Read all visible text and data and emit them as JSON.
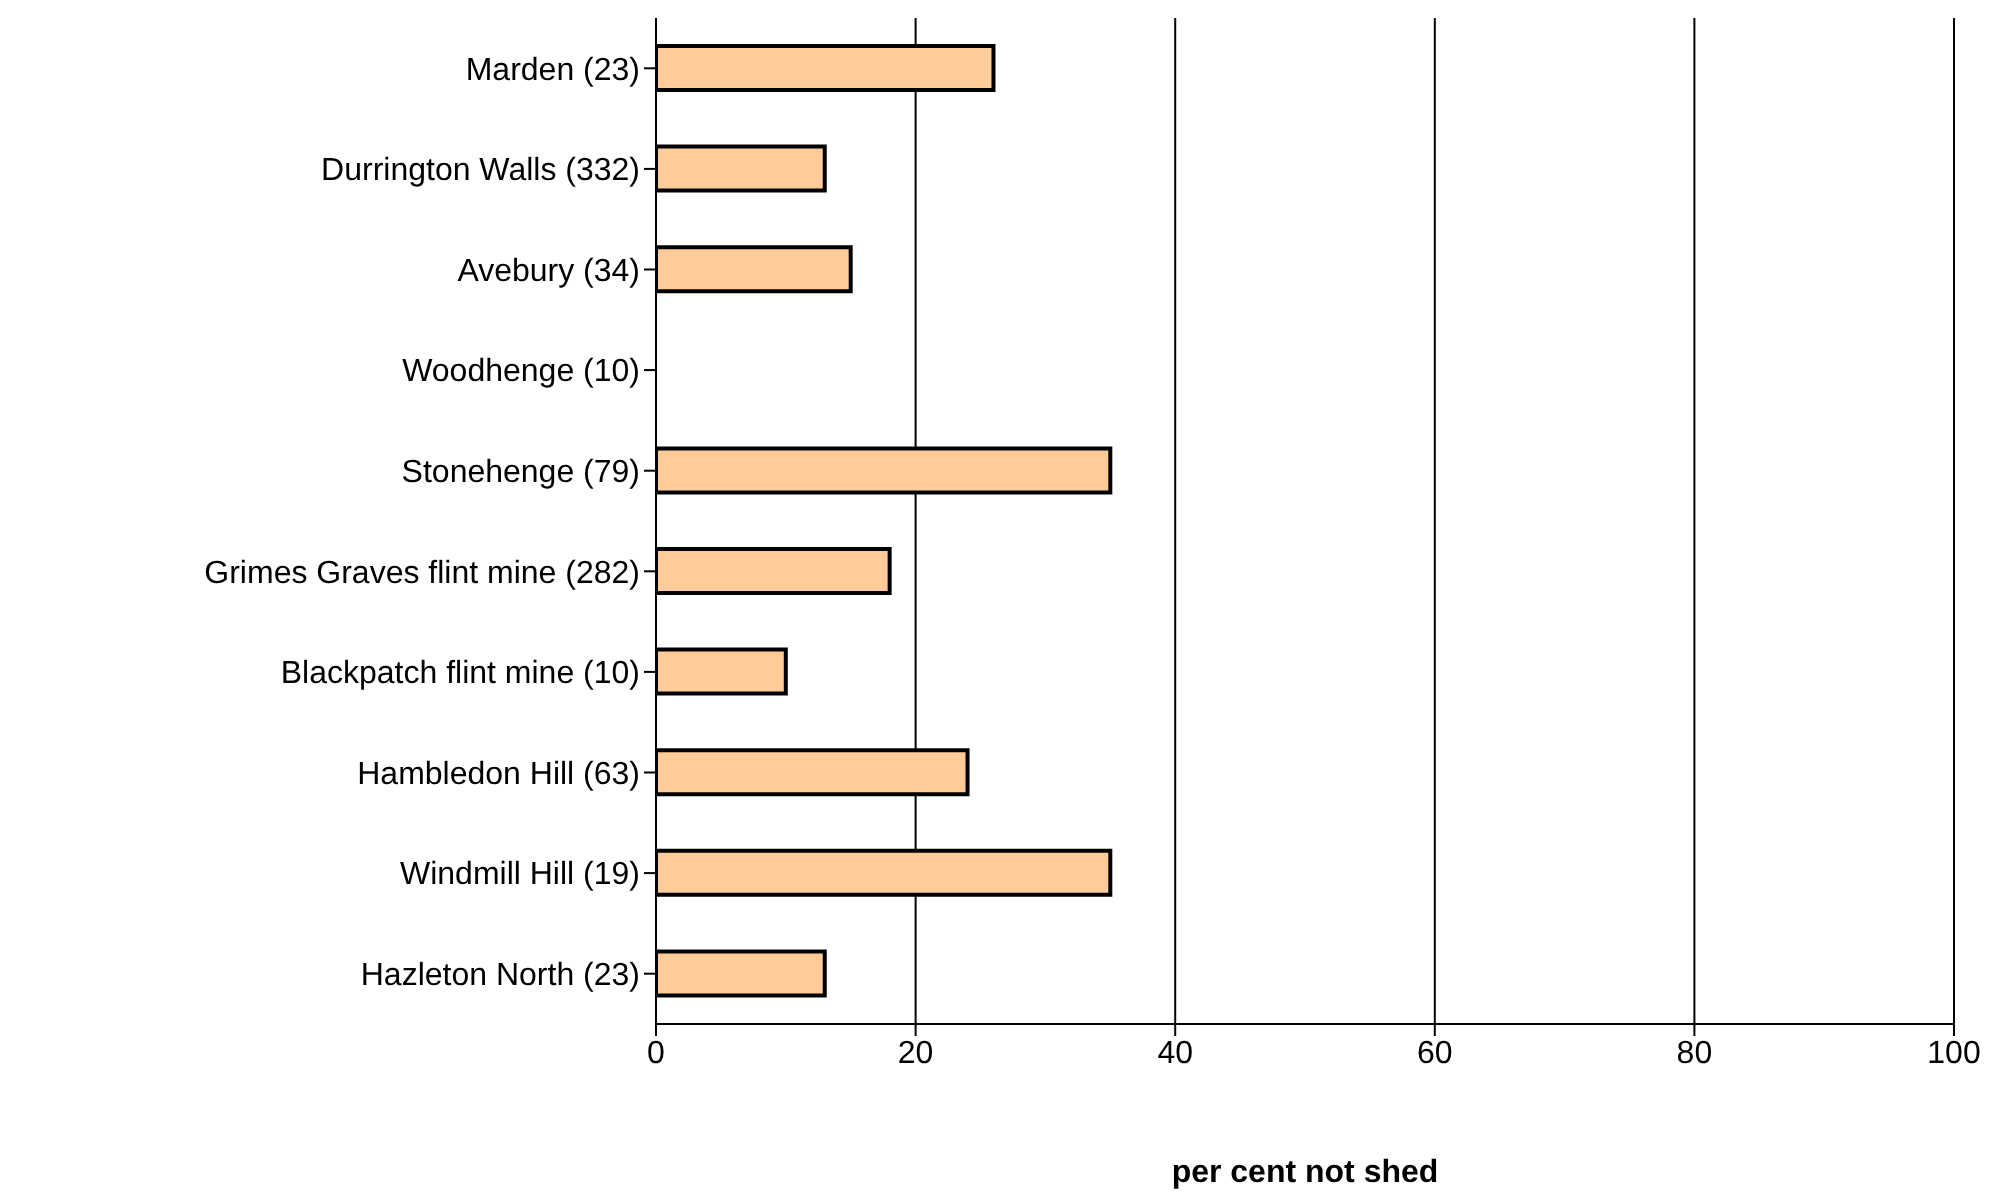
{
  "chart_data": {
    "type": "bar",
    "orientation": "horizontal",
    "xlabel": "per cent not shed",
    "categories": [
      "Marden (23)",
      "Durrington Walls (332)",
      "Avebury (34)",
      "Woodhenge (10)",
      "Stonehenge (79)",
      "Grimes Graves flint mine (282)",
      "Blackpatch flint mine (10)",
      "Hambledon Hill (63)",
      "Windmill Hill (19)",
      "Hazleton North (23)"
    ],
    "values": [
      26,
      13,
      15,
      0,
      35,
      18,
      10,
      24,
      35,
      13
    ],
    "color": "#ffcc99",
    "xlim": [
      0,
      100
    ],
    "xticks": [
      0,
      20,
      40,
      60,
      80,
      100
    ],
    "grid": "x"
  }
}
